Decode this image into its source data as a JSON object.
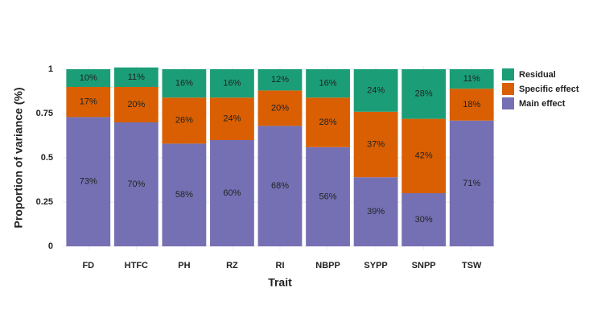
{
  "chart_data": {
    "type": "stacked_bar",
    "x_label": "Trait",
    "y_label": "Proportion of variance (%)",
    "categories": [
      "FD",
      "HTFC",
      "PH",
      "RZ",
      "RI",
      "NBPP",
      "SYPP",
      "SNPP",
      "TSW"
    ],
    "series": [
      {
        "name": "Main effect",
        "color": "#7570b3",
        "values": [
          0.73,
          0.7,
          0.58,
          0.6,
          0.68,
          0.56,
          0.39,
          0.3,
          0.71
        ],
        "value_labels": [
          "73%",
          "70%",
          "58%",
          "60%",
          "68%",
          "56%",
          "39%",
          "30%",
          "71%"
        ]
      },
      {
        "name": "Specific effect",
        "color": "#d95f02",
        "values": [
          0.17,
          0.2,
          0.26,
          0.24,
          0.2,
          0.28,
          0.37,
          0.42,
          0.18
        ],
        "value_labels": [
          "17%",
          "20%",
          "26%",
          "24%",
          "20%",
          "28%",
          "37%",
          "42%",
          "18%"
        ]
      },
      {
        "name": "Residual",
        "color": "#1b9e77",
        "values": [
          0.1,
          0.11,
          0.16,
          0.16,
          0.12,
          0.16,
          0.24,
          0.28,
          0.11
        ],
        "value_labels": [
          "10%",
          "11%",
          "16%",
          "16%",
          "12%",
          "16%",
          "24%",
          "28%",
          "11%"
        ]
      }
    ],
    "ylim": [
      0,
      1
    ],
    "yticks": [
      0,
      0.25,
      0.5,
      0.75,
      1
    ],
    "grid": true,
    "legend": "right"
  }
}
